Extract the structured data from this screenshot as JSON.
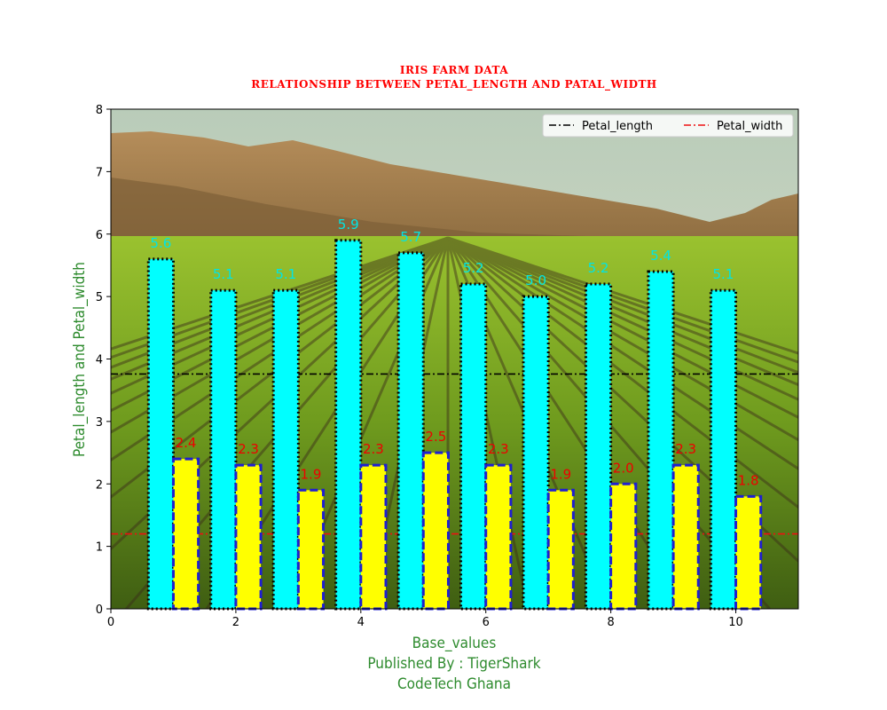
{
  "chart_data": {
    "type": "bar",
    "title_line1": "IRIS FARM DATA",
    "title_line2": "RELATIONSHIP BETWEEN PETAL_LENGTH AND PATAL_WIDTH",
    "xlabel": "Base_values",
    "footer_line1": "Published By : TigerShark",
    "footer_line2": "CodeTech Ghana",
    "ylabel": "Petal_length and Petal_width",
    "xlim": [
      0,
      11
    ],
    "ylim": [
      0,
      8
    ],
    "x_ticks": [
      0,
      2,
      4,
      6,
      8,
      10
    ],
    "y_ticks": [
      0,
      1,
      2,
      3,
      4,
      5,
      6,
      7,
      8
    ],
    "x": [
      1,
      2,
      3,
      4,
      5,
      6,
      7,
      8,
      9,
      10
    ],
    "series": [
      {
        "values": [
          5.6,
          5.1,
          5.1,
          5.9,
          5.7,
          5.2,
          5.0,
          5.2,
          5.4,
          5.1
        ],
        "color": "#00ffff",
        "edge": "#000000",
        "labels": [
          "5.6",
          "5.1",
          "5.1",
          "5.9",
          "5.7",
          "5.2",
          "5.0",
          "5.2",
          "5.4",
          "5.1"
        ]
      },
      {
        "values": [
          2.4,
          2.3,
          1.9,
          2.3,
          2.5,
          2.3,
          1.9,
          2.0,
          2.3,
          1.8
        ],
        "color": "#ffff00",
        "edge": "#1f1fd0",
        "labels": [
          "2.4",
          "2.3",
          "1.9",
          "2.3",
          "2.5",
          "2.3",
          "1.9",
          "2.0",
          "2.3",
          "1.8"
        ]
      }
    ],
    "mean_lines": [
      {
        "name": "Petal_length",
        "value": 3.76,
        "color": "#000000"
      },
      {
        "name": "Petal_width",
        "value": 1.2,
        "color": "#ee1111"
      }
    ],
    "legend_position": "upper right",
    "legend_columns": 2
  }
}
